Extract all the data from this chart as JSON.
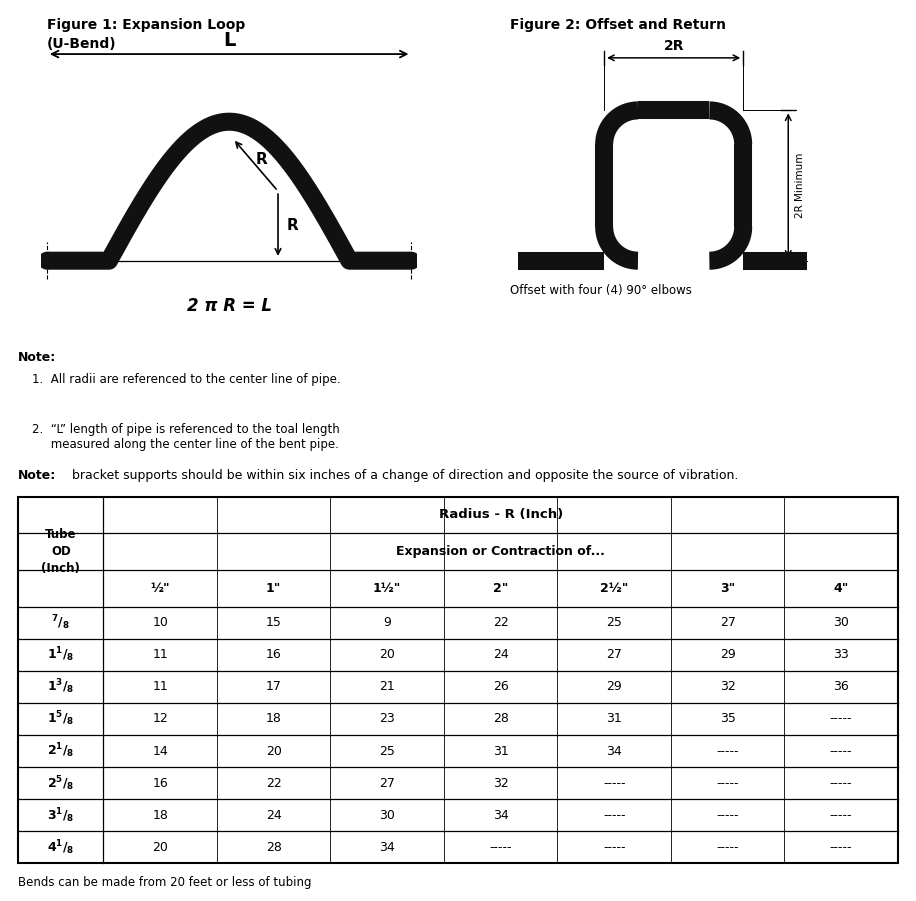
{
  "fig1_title": "Figure 1: Expansion Loop\n(U-Bend)",
  "fig2_title": "Figure 2: Offset and Return",
  "fig1_bg": "#cce8f4",
  "formula": "2 π R = L",
  "note1_bold": "Note:",
  "note1_items": [
    "1.  All radii are referenced to the center line of pipe.",
    "2.  “L” length of pipe is referenced to the toal length\n     measured along the center line of the bent pipe."
  ],
  "note2_bold": "Note:",
  "note2_rest": " bracket supports should be within six inches of a change of direction and opposite the source of vibration.",
  "fig2_caption": "Offset with four (4) 90° elbows",
  "table_header1": "Radius - R (Inch)",
  "table_header2": "Expansion or Contraction of...",
  "col_header_left": "Tube\nOD\n(Inch)",
  "col_headers": [
    "½\"",
    "1\"",
    "1½\"",
    "2\"",
    "2½\"",
    "3\"",
    "4\""
  ],
  "table_data": [
    [
      "10",
      "15",
      "9",
      "22",
      "25",
      "27",
      "30"
    ],
    [
      "11",
      "16",
      "20",
      "24",
      "27",
      "29",
      "33"
    ],
    [
      "11",
      "17",
      "21",
      "26",
      "29",
      "32",
      "36"
    ],
    [
      "12",
      "18",
      "23",
      "28",
      "31",
      "35",
      "-----"
    ],
    [
      "14",
      "20",
      "25",
      "31",
      "34",
      "-----",
      "-----"
    ],
    [
      "16",
      "22",
      "27",
      "32",
      "-----",
      "-----",
      "-----"
    ],
    [
      "18",
      "24",
      "30",
      "34",
      "-----",
      "-----",
      "-----"
    ],
    [
      "20",
      "28",
      "34",
      "-----",
      "-----",
      "-----",
      "-----"
    ]
  ],
  "footer": "Bends can be made from 20 feet or less of tubing",
  "pipe_color": "#111111",
  "pipe_lw": 13
}
